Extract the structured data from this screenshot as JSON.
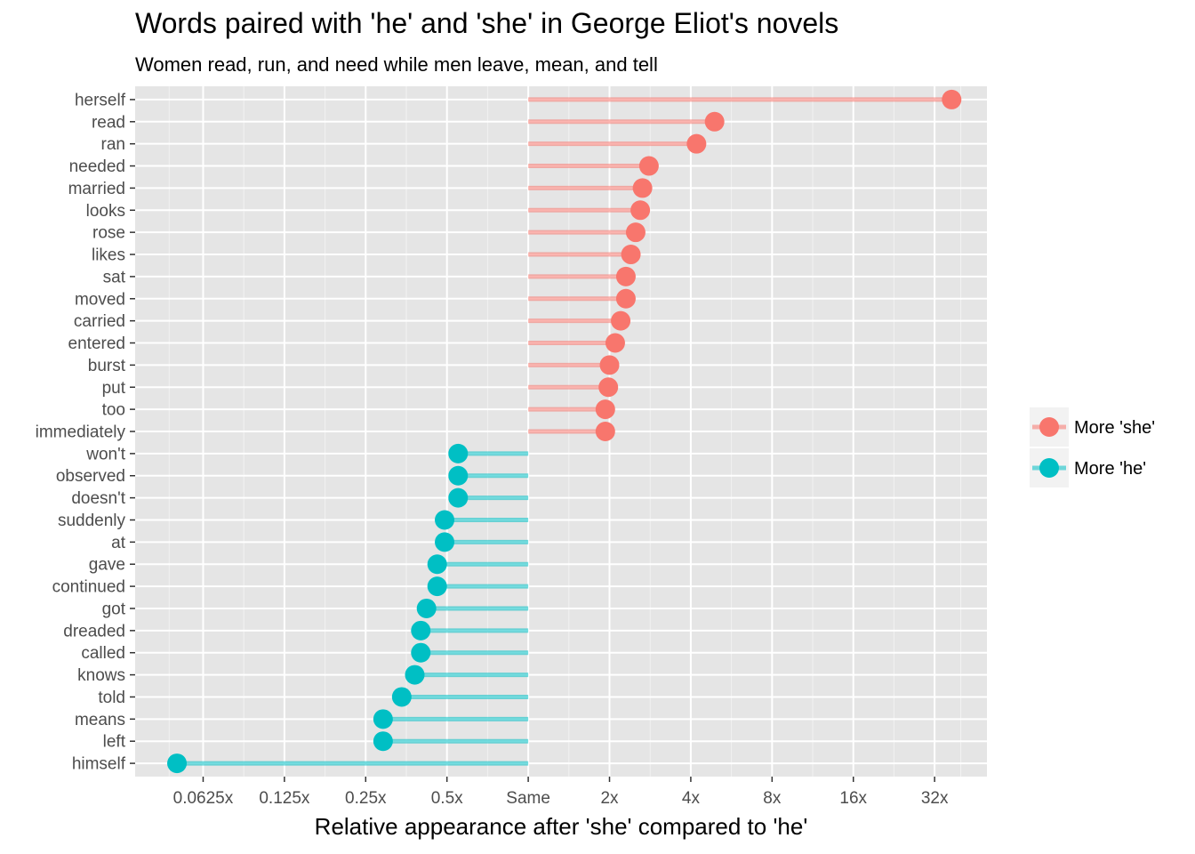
{
  "chart_data": {
    "type": "lollipop",
    "title": "Words paired with 'he' and 'she' in George Eliot's novels",
    "subtitle": "Women read, run, and need while men leave, mean, and tell",
    "xlabel": "Relative appearance after 'she' compared to 'he'",
    "ylabel": "",
    "x_scale": "log2",
    "xlim": [
      0.035,
      50
    ],
    "x_ticks": [
      {
        "value": 0.0625,
        "label": "0.0625x"
      },
      {
        "value": 0.125,
        "label": "0.125x"
      },
      {
        "value": 0.25,
        "label": "0.25x"
      },
      {
        "value": 0.5,
        "label": "0.5x"
      },
      {
        "value": 1,
        "label": "Same"
      },
      {
        "value": 2,
        "label": "2x"
      },
      {
        "value": 4,
        "label": "4x"
      },
      {
        "value": 8,
        "label": "8x"
      },
      {
        "value": 16,
        "label": "16x"
      },
      {
        "value": 32,
        "label": "32x"
      }
    ],
    "grid": true,
    "legend_position": "right",
    "series": [
      {
        "name": "More 'she'",
        "color": "#F8766D"
      },
      {
        "name": "More 'he'",
        "color": "#00BFC4"
      }
    ],
    "points": [
      {
        "word": "herself",
        "value": 37.0,
        "series": "More 'she'"
      },
      {
        "word": "read",
        "value": 4.9,
        "series": "More 'she'"
      },
      {
        "word": "ran",
        "value": 4.2,
        "series": "More 'she'"
      },
      {
        "word": "needed",
        "value": 2.8,
        "series": "More 'she'"
      },
      {
        "word": "married",
        "value": 2.65,
        "series": "More 'she'"
      },
      {
        "word": "looks",
        "value": 2.6,
        "series": "More 'she'"
      },
      {
        "word": "rose",
        "value": 2.5,
        "series": "More 'she'"
      },
      {
        "word": "likes",
        "value": 2.4,
        "series": "More 'she'"
      },
      {
        "word": "sat",
        "value": 2.3,
        "series": "More 'she'"
      },
      {
        "word": "moved",
        "value": 2.3,
        "series": "More 'she'"
      },
      {
        "word": "carried",
        "value": 2.2,
        "series": "More 'she'"
      },
      {
        "word": "entered",
        "value": 2.1,
        "series": "More 'she'"
      },
      {
        "word": "burst",
        "value": 2.0,
        "series": "More 'she'"
      },
      {
        "word": "put",
        "value": 1.98,
        "series": "More 'she'"
      },
      {
        "word": "too",
        "value": 1.93,
        "series": "More 'she'"
      },
      {
        "word": "immediately",
        "value": 1.93,
        "series": "More 'she'"
      },
      {
        "word": "won't",
        "value": 0.55,
        "series": "More 'he'"
      },
      {
        "word": "observed",
        "value": 0.55,
        "series": "More 'he'"
      },
      {
        "word": "doesn't",
        "value": 0.55,
        "series": "More 'he'"
      },
      {
        "word": "suddenly",
        "value": 0.49,
        "series": "More 'he'"
      },
      {
        "word": "at",
        "value": 0.49,
        "series": "More 'he'"
      },
      {
        "word": "gave",
        "value": 0.46,
        "series": "More 'he'"
      },
      {
        "word": "continued",
        "value": 0.46,
        "series": "More 'he'"
      },
      {
        "word": "got",
        "value": 0.42,
        "series": "More 'he'"
      },
      {
        "word": "dreaded",
        "value": 0.4,
        "series": "More 'he'"
      },
      {
        "word": "called",
        "value": 0.4,
        "series": "More 'he'"
      },
      {
        "word": "knows",
        "value": 0.38,
        "series": "More 'he'"
      },
      {
        "word": "told",
        "value": 0.34,
        "series": "More 'he'"
      },
      {
        "word": "means",
        "value": 0.29,
        "series": "More 'he'"
      },
      {
        "word": "left",
        "value": 0.29,
        "series": "More 'he'"
      },
      {
        "word": "himself",
        "value": 0.05,
        "series": "More 'he'"
      }
    ]
  }
}
